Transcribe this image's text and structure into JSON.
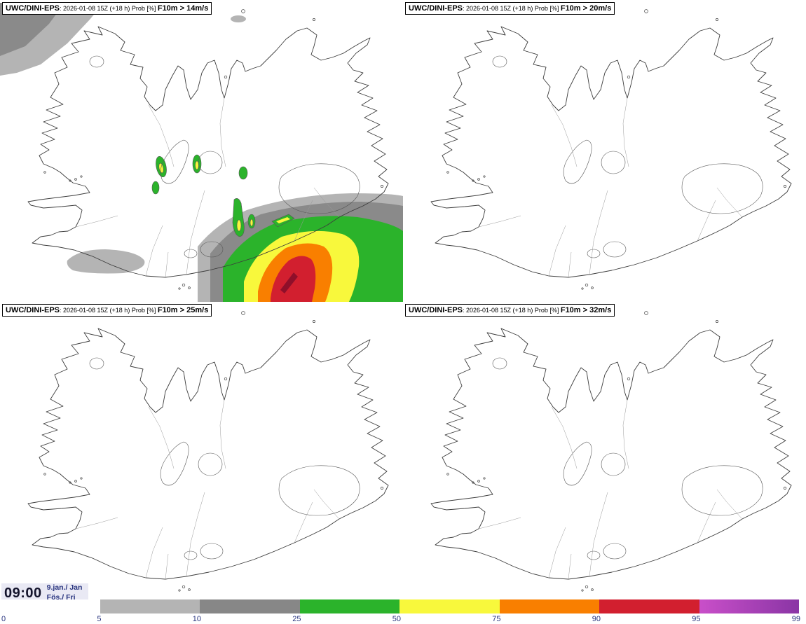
{
  "panels": [
    {
      "model": "UWC/DINI-EPS",
      "meta": ": 2026-01-08 15Z (+18 h) Prob [%] ",
      "threshold": "F10m > 14m/s"
    },
    {
      "model": "UWC/DINI-EPS",
      "meta": ": 2026-01-08 15Z (+18 h) Prob [%] ",
      "threshold": "F10m > 20m/s"
    },
    {
      "model": "UWC/DINI-EPS",
      "meta": ": 2026-01-08 15Z (+18 h) Prob [%] ",
      "threshold": "F10m > 25m/s"
    },
    {
      "model": "UWC/DINI-EPS",
      "meta": ": 2026-01-08 15Z (+18 h) Prob [%] ",
      "threshold": "F10m > 32m/s"
    }
  ],
  "footer": {
    "time": "09:00",
    "date_top": "9.jan./ Jan",
    "date_bottom": "Fös./ Fri"
  },
  "colorbar": {
    "ticks": [
      "0",
      "5",
      "10",
      "25",
      "50",
      "75",
      "90",
      "95",
      "99"
    ],
    "segments": [
      {
        "range": "0-5",
        "color": "#ffffff"
      },
      {
        "range": "5-10",
        "color": "#b4b4b4"
      },
      {
        "range": "10-25",
        "color": "#878787"
      },
      {
        "range": "25-50",
        "color": "#2bb32b"
      },
      {
        "range": "50-75",
        "color": "#f8f83c"
      },
      {
        "range": "75-90",
        "color": "#f97f00"
      },
      {
        "range": "90-95",
        "color": "#d21f2f"
      },
      {
        "range": "95-99",
        "color": "#c94fc9",
        "color2": "#8a35a5"
      }
    ]
  },
  "map_colors": {
    "light_gray": "#b4b4b4",
    "gray": "#8a8a8a",
    "green": "#2bb32b",
    "yellow": "#f8f83c",
    "orange": "#f97f00",
    "red": "#d21f2f",
    "dark_red": "#8f0f2a"
  }
}
